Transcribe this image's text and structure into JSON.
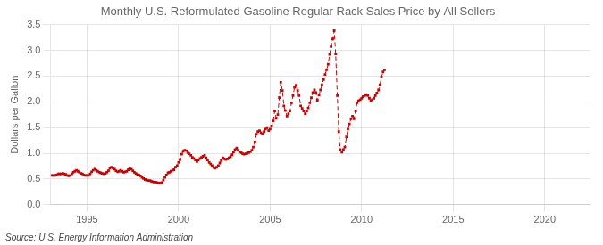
{
  "chart_data": {
    "type": "line",
    "title": "Monthly U.S. Reformulated Gasoline Regular Rack Sales Price by All Sellers",
    "ylabel": "Dollars per Gallon",
    "source": "Source: U.S. Energy Information Administration",
    "color": "#cc0000",
    "marker": "square",
    "line_style": "dashed",
    "grid": true,
    "xlim": [
      1993.0,
      2022.5
    ],
    "xticks": [
      1995,
      2000,
      2005,
      2010,
      2015,
      2020
    ],
    "ylim": [
      0.0,
      3.5
    ],
    "yticks": [
      {
        "value": 0,
        "label": "0.0"
      },
      0.5,
      {
        "value": 1,
        "label": "1.0"
      },
      1.5,
      {
        "value": 2,
        "label": "2.0"
      },
      2.5,
      {
        "value": 3,
        "label": "3.0"
      },
      3.5
    ],
    "x": [
      1993.08,
      1993.17,
      1993.25,
      1993.33,
      1993.42,
      1993.5,
      1993.58,
      1993.67,
      1993.75,
      1993.83,
      1993.92,
      1994.0,
      1994.08,
      1994.17,
      1994.25,
      1994.33,
      1994.42,
      1994.5,
      1994.58,
      1994.67,
      1994.75,
      1994.83,
      1994.92,
      1995.0,
      1995.08,
      1995.17,
      1995.25,
      1995.33,
      1995.42,
      1995.5,
      1995.58,
      1995.67,
      1995.75,
      1995.83,
      1995.92,
      1996.0,
      1996.08,
      1996.17,
      1996.25,
      1996.33,
      1996.42,
      1996.5,
      1996.58,
      1996.67,
      1996.75,
      1996.83,
      1996.92,
      1997.0,
      1997.08,
      1997.17,
      1997.25,
      1997.33,
      1997.42,
      1997.5,
      1997.58,
      1997.67,
      1997.75,
      1997.83,
      1997.92,
      1998.0,
      1998.08,
      1998.17,
      1998.25,
      1998.33,
      1998.42,
      1998.5,
      1998.58,
      1998.67,
      1998.75,
      1998.83,
      1998.92,
      1999.0,
      1999.08,
      1999.17,
      1999.25,
      1999.33,
      1999.42,
      1999.5,
      1999.58,
      1999.67,
      1999.75,
      1999.83,
      1999.92,
      2000.0,
      2000.08,
      2000.17,
      2000.25,
      2000.33,
      2000.42,
      2000.5,
      2000.58,
      2000.67,
      2000.75,
      2000.83,
      2000.92,
      2001.0,
      2001.08,
      2001.17,
      2001.25,
      2001.33,
      2001.42,
      2001.5,
      2001.58,
      2001.67,
      2001.75,
      2001.83,
      2001.92,
      2002.0,
      2002.08,
      2002.17,
      2002.25,
      2002.33,
      2002.42,
      2002.5,
      2002.58,
      2002.67,
      2002.75,
      2002.83,
      2002.92,
      2003.0,
      2003.08,
      2003.17,
      2003.25,
      2003.33,
      2003.42,
      2003.5,
      2003.58,
      2003.67,
      2003.75,
      2003.83,
      2003.92,
      2004.0,
      2004.08,
      2004.17,
      2004.25,
      2004.33,
      2004.42,
      2004.5,
      2004.58,
      2004.67,
      2004.75,
      2004.83,
      2004.92,
      2005.0,
      2005.08,
      2005.17,
      2005.25,
      2005.33,
      2005.42,
      2005.5,
      2005.58,
      2005.67,
      2005.75,
      2005.83,
      2005.92,
      2006.0,
      2006.08,
      2006.17,
      2006.25,
      2006.33,
      2006.42,
      2006.5,
      2006.58,
      2006.67,
      2006.75,
      2006.83,
      2006.92,
      2007.0,
      2007.08,
      2007.17,
      2007.25,
      2007.33,
      2007.42,
      2007.5,
      2007.58,
      2007.67,
      2007.75,
      2007.83,
      2007.92,
      2008.0,
      2008.08,
      2008.17,
      2008.25,
      2008.33,
      2008.42,
      2008.5,
      2008.58,
      2008.67,
      2008.75,
      2008.83,
      2008.92,
      2009.0,
      2009.08,
      2009.17,
      2009.25,
      2009.33,
      2009.42,
      2009.5,
      2009.58,
      2009.67,
      2009.75,
      2009.83,
      2009.92,
      2010.0,
      2010.08,
      2010.17,
      2010.25,
      2010.33,
      2010.42,
      2010.5,
      2010.58,
      2010.67,
      2010.75,
      2010.83,
      2010.92,
      2011.0,
      2011.08,
      2011.17,
      2011.25
    ],
    "values": [
      0.57,
      0.57,
      0.57,
      0.58,
      0.6,
      0.6,
      0.6,
      0.61,
      0.6,
      0.59,
      0.57,
      0.56,
      0.57,
      0.6,
      0.63,
      0.65,
      0.67,
      0.65,
      0.63,
      0.61,
      0.6,
      0.58,
      0.57,
      0.57,
      0.57,
      0.6,
      0.64,
      0.67,
      0.69,
      0.67,
      0.65,
      0.63,
      0.62,
      0.61,
      0.6,
      0.61,
      0.63,
      0.66,
      0.71,
      0.73,
      0.71,
      0.69,
      0.66,
      0.64,
      0.65,
      0.67,
      0.65,
      0.63,
      0.64,
      0.65,
      0.68,
      0.7,
      0.69,
      0.66,
      0.63,
      0.61,
      0.59,
      0.58,
      0.56,
      0.53,
      0.51,
      0.49,
      0.48,
      0.47,
      0.47,
      0.46,
      0.45,
      0.44,
      0.44,
      0.43,
      0.42,
      0.42,
      0.43,
      0.48,
      0.53,
      0.58,
      0.62,
      0.63,
      0.65,
      0.67,
      0.68,
      0.73,
      0.76,
      0.82,
      0.88,
      0.98,
      1.04,
      1.06,
      1.05,
      1.01,
      0.99,
      0.96,
      0.92,
      0.9,
      0.87,
      0.84,
      0.87,
      0.9,
      0.92,
      0.94,
      0.96,
      0.91,
      0.87,
      0.82,
      0.79,
      0.76,
      0.72,
      0.71,
      0.73,
      0.76,
      0.81,
      0.86,
      0.91,
      0.89,
      0.88,
      0.89,
      0.91,
      0.93,
      0.97,
      1.02,
      1.07,
      1.1,
      1.06,
      1.03,
      1.01,
      0.99,
      0.98,
      0.99,
      1.0,
      1.01,
      1.03,
      1.06,
      1.12,
      1.22,
      1.37,
      1.42,
      1.44,
      1.4,
      1.37,
      1.42,
      1.47,
      1.5,
      1.44,
      1.47,
      1.53,
      1.63,
      1.82,
      1.68,
      1.75,
      2.08,
      2.38,
      2.22,
      1.92,
      1.83,
      1.72,
      1.77,
      1.82,
      1.98,
      2.12,
      2.28,
      2.32,
      2.22,
      2.12,
      1.92,
      1.87,
      1.82,
      1.77,
      1.82,
      1.88,
      1.98,
      2.08,
      2.18,
      2.23,
      2.18,
      2.03,
      2.13,
      2.23,
      2.33,
      2.43,
      2.53,
      2.62,
      2.73,
      2.92,
      3.07,
      3.22,
      3.38,
      2.93,
      2.12,
      1.42,
      1.07,
      1.02,
      1.07,
      1.12,
      1.32,
      1.47,
      1.57,
      1.67,
      1.72,
      1.67,
      1.82,
      1.98,
      2.02,
      2.04,
      2.07,
      2.1,
      2.12,
      2.14,
      2.12,
      2.07,
      2.02,
      2.04,
      2.07,
      2.12,
      2.17,
      2.23,
      2.33,
      2.48,
      2.58,
      2.62
    ]
  }
}
